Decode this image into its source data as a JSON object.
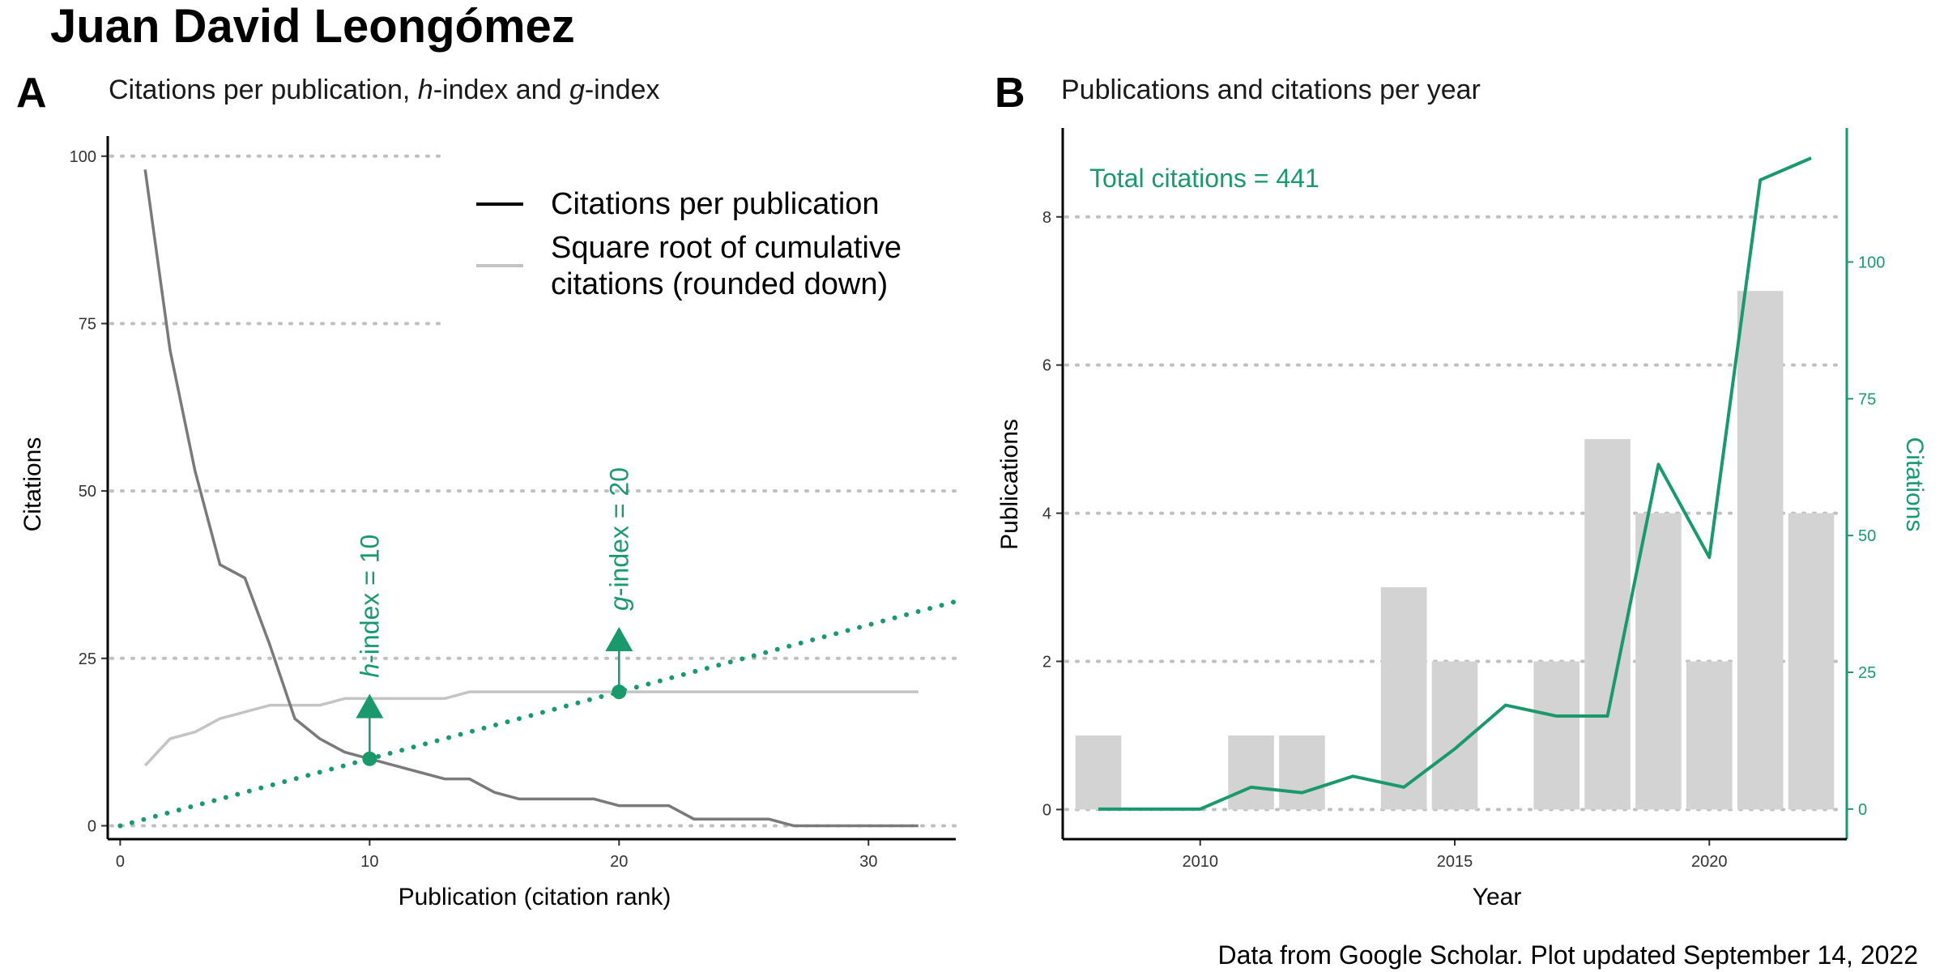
{
  "title": "Juan David Leongómez",
  "caption": "Data from Google Scholar. Plot updated September 14, 2022",
  "colors": {
    "green": "#1a9a6c",
    "dark_line": "#7a7a7a",
    "light_line": "#c4c4c4",
    "bar": "#d3d3d3",
    "grid": "#c0c0c0"
  },
  "chart_data": [
    {
      "type": "line",
      "panel": "A",
      "title": "Citations per publication,  h-index and g-index",
      "title_parts": [
        "Citations per publication,  ",
        "h",
        "-index and ",
        "g",
        "-index"
      ],
      "xlabel": "Publication (citation rank)",
      "ylabel": "Citations",
      "xlim": [
        -0.5,
        33.5
      ],
      "ylim": [
        -2,
        103
      ],
      "x_ticks": [
        0,
        10,
        20,
        30
      ],
      "y_ticks": [
        0,
        25,
        50,
        75,
        100
      ],
      "legend": {
        "placement": "top-right",
        "entries": [
          "Citations per publication",
          "Square root of cumulative citations (rounded down)"
        ],
        "entry2_lines": [
          "Square root of cumulative",
          "citations (rounded down)"
        ]
      },
      "series": [
        {
          "name": "Citations per publication",
          "x": [
            1,
            2,
            3,
            4,
            5,
            6,
            7,
            8,
            9,
            10,
            11,
            12,
            13,
            14,
            15,
            16,
            17,
            18,
            19,
            20,
            21,
            22,
            23,
            24,
            25,
            26,
            27,
            28,
            29,
            30,
            31,
            32
          ],
          "values": [
            98,
            71,
            53,
            39,
            37,
            27,
            16,
            13,
            11,
            10,
            9,
            8,
            7,
            7,
            5,
            4,
            4,
            4,
            4,
            3,
            3,
            3,
            1,
            1,
            1,
            1,
            0,
            0,
            0,
            0,
            0,
            0
          ]
        },
        {
          "name": "Square root of cumulative citations (rounded down)",
          "x": [
            1,
            2,
            3,
            4,
            5,
            6,
            7,
            8,
            9,
            10,
            11,
            12,
            13,
            14,
            15,
            16,
            17,
            18,
            19,
            20,
            21,
            22,
            23,
            24,
            25,
            26,
            27,
            28,
            29,
            30,
            31,
            32
          ],
          "values": [
            9,
            13,
            14,
            16,
            17,
            18,
            18,
            18,
            19,
            19,
            19,
            19,
            19,
            20,
            20,
            20,
            20,
            20,
            20,
            20,
            20,
            20,
            20,
            20,
            20,
            20,
            20,
            20,
            20,
            20,
            20,
            20
          ]
        },
        {
          "name": "identity (dotted)",
          "x": [
            0,
            33.5
          ],
          "values": [
            0,
            33.5
          ]
        }
      ],
      "annotations": [
        {
          "x": 10,
          "y": 10,
          "arrow_to": 18,
          "label": "h-index = 10",
          "italic": "h",
          "rest": "-index = 10"
        },
        {
          "x": 20,
          "y": 20,
          "arrow_to": 28,
          "label": "g-index = 20",
          "italic": "g",
          "rest": "-index = 20"
        }
      ]
    },
    {
      "type": "bar",
      "panel": "B",
      "title": "Publications and citations per year",
      "xlabel": "Year",
      "ylabel": "Publications",
      "y2label": "Citations",
      "annotation": "Total citations = 441",
      "xlim": [
        2007.3,
        2022.7
      ],
      "ylim": [
        -0.4,
        9.2
      ],
      "y2lim": [
        -5.5,
        124.5
      ],
      "x_ticks": [
        2010,
        2015,
        2020
      ],
      "y_ticks": [
        0,
        2,
        4,
        6,
        8
      ],
      "y2_ticks": [
        0,
        25,
        50,
        75,
        100
      ],
      "categories": [
        2008,
        2011,
        2012,
        2014,
        2015,
        2017,
        2018,
        2019,
        2020,
        2021,
        2022
      ],
      "values": [
        1,
        1,
        1,
        3,
        2,
        2,
        5,
        4,
        2,
        7,
        4
      ],
      "series": [
        {
          "name": "Citations",
          "axis": "right",
          "x": [
            2008,
            2009,
            2010,
            2011,
            2012,
            2013,
            2014,
            2015,
            2016,
            2017,
            2018,
            2019,
            2020,
            2021,
            2022
          ],
          "values": [
            0,
            0,
            0,
            4,
            3,
            6,
            4,
            11,
            19,
            17,
            17,
            63,
            46,
            115,
            119
          ]
        }
      ]
    }
  ]
}
